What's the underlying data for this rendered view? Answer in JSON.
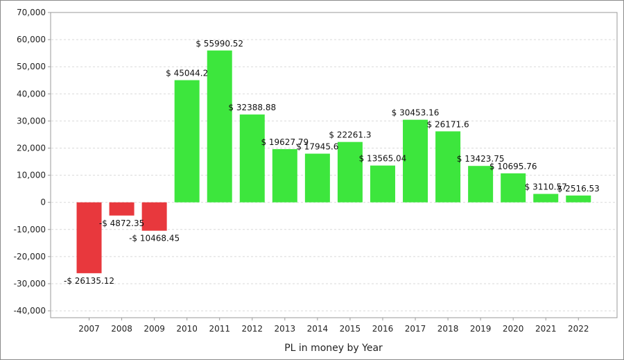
{
  "chart_data": {
    "type": "bar",
    "title": "",
    "xlabel": "PL in money by Year",
    "ylabel": "",
    "ylim": [
      -45000,
      70000
    ],
    "yticks": [
      70000,
      60000,
      50000,
      40000,
      30000,
      20000,
      10000,
      0,
      -10000,
      -20000,
      -30000,
      -40000
    ],
    "ytick_labels": [
      "70,000",
      "60,000",
      "50,000",
      "40,000",
      "30,000",
      "20,000",
      "10,000",
      "0",
      "-10,000",
      "-20,000",
      "-30,000",
      "-40,000"
    ],
    "grid": true,
    "categories": [
      "2007",
      "2008",
      "2009",
      "2010",
      "2011",
      "2012",
      "2013",
      "2014",
      "2015",
      "2016",
      "2017",
      "2018",
      "2019",
      "2020",
      "2021",
      "2022"
    ],
    "values": [
      -26135.12,
      -4872.35,
      -10468.45,
      45044.2,
      55990.52,
      32388.88,
      19627.79,
      17945.6,
      22261.3,
      13565.04,
      30453.16,
      26171.6,
      13423.75,
      10695.76,
      3110.57,
      2516.53
    ],
    "data_labels": [
      "-$ 26135.12",
      "-$ 4872.35",
      "-$ 10468.45",
      "$ 45044.2",
      "$ 55990.52",
      "$ 32388.88",
      "$ 19627.79",
      "$ 17945.6",
      "$ 22261.3",
      "$ 13565.04",
      "$ 30453.16",
      "$ 26171.6",
      "$ 13423.75",
      "$ 10695.76",
      "$ 3110.57",
      "$ 2516.53"
    ],
    "colors": {
      "positive": "#3de63d",
      "negative": "#e8383d",
      "grid": "#d9d9d9",
      "axis": "#999999"
    }
  }
}
